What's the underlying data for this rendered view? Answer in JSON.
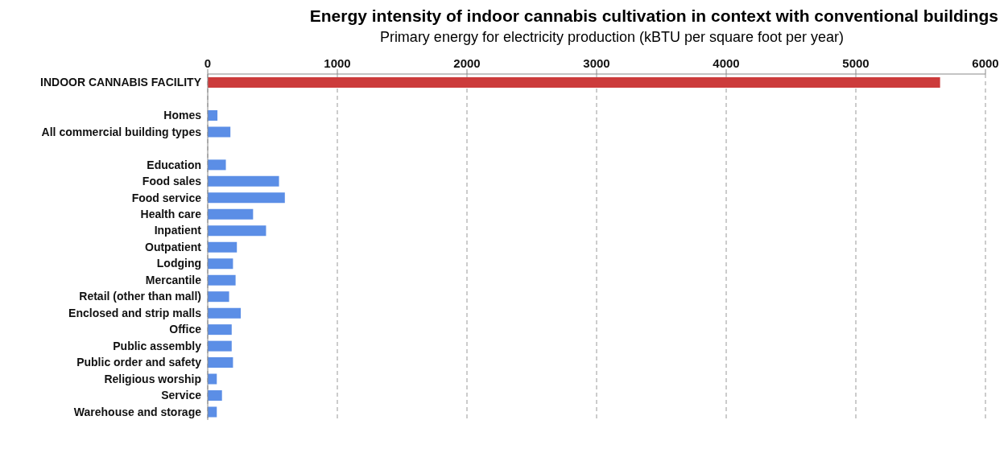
{
  "chart_data": {
    "type": "bar",
    "orientation": "horizontal",
    "title": "Energy intensity of indoor cannabis cultivation in context with conventional buildings",
    "xlabel": "Primary energy for electricity production (kBTU per square foot per year)",
    "categories": [
      "INDOOR CANNABIS FACILITY",
      null,
      "Homes",
      "All commercial building types",
      null,
      "Education",
      "Food sales",
      "Food service",
      "Health care",
      "Inpatient",
      "Outpatient",
      "Lodging",
      "Mercantile",
      "Retail (other than mall)",
      "Enclosed and strip malls",
      "Office",
      "Public assembly",
      "Public order and safety",
      "Religious worship",
      "Service",
      "Warehouse and storage"
    ],
    "values": [
      5650,
      null,
      75,
      175,
      null,
      140,
      550,
      595,
      350,
      450,
      225,
      195,
      215,
      165,
      255,
      185,
      185,
      195,
      70,
      110,
      70
    ],
    "colors": [
      "#cc3b3b",
      null,
      "#5b8ee6",
      "#5b8ee6",
      null,
      "#5b8ee6",
      "#5b8ee6",
      "#5b8ee6",
      "#5b8ee6",
      "#5b8ee6",
      "#5b8ee6",
      "#5b8ee6",
      "#5b8ee6",
      "#5b8ee6",
      "#5b8ee6",
      "#5b8ee6",
      "#5b8ee6",
      "#5b8ee6",
      "#5b8ee6",
      "#5b8ee6",
      "#5b8ee6"
    ],
    "xlim": [
      0,
      6000
    ],
    "xticks": [
      0,
      1000,
      2000,
      3000,
      4000,
      5000,
      6000
    ],
    "grid": "x"
  }
}
